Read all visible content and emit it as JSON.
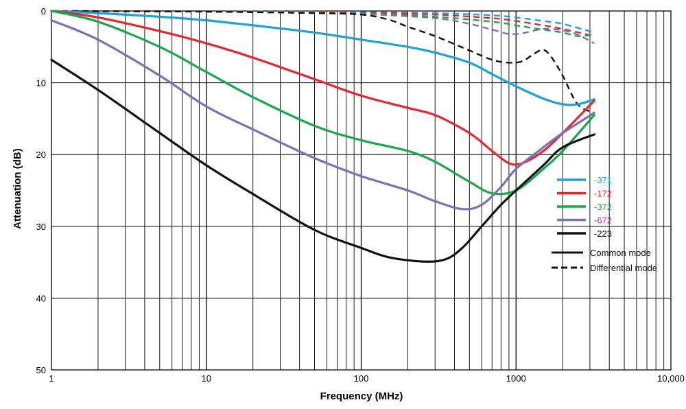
{
  "chart_data": {
    "type": "line",
    "title": "",
    "xlabel": "Frequency (MHz)",
    "ylabel": "Attenuation (dB)",
    "x_scale": "log",
    "xlim": [
      1,
      10000
    ],
    "ylim": [
      0,
      50
    ],
    "y_inverted": true,
    "grid": true,
    "x_ticks": [
      {
        "value": 1,
        "label": "1"
      },
      {
        "value": 10,
        "label": "10"
      },
      {
        "value": 100,
        "label": "100"
      },
      {
        "value": 1000,
        "label": "1000"
      },
      {
        "value": 10000,
        "label": "10,000"
      }
    ],
    "y_ticks": [
      {
        "value": 0,
        "label": "0"
      },
      {
        "value": 10,
        "label": "10"
      },
      {
        "value": 20,
        "label": "20"
      },
      {
        "value": 30,
        "label": "30"
      },
      {
        "value": 40,
        "label": "40"
      },
      {
        "value": 50,
        "label": "50"
      }
    ],
    "legend_position": "right",
    "series": [
      {
        "name": "-371",
        "mode": "common",
        "color": "#1ba1dc",
        "label_color": "#1ba1dc",
        "points": [
          [
            1,
            0
          ],
          [
            2,
            0.3
          ],
          [
            5,
            0.8
          ],
          [
            10,
            1.3
          ],
          [
            20,
            2
          ],
          [
            50,
            3
          ],
          [
            100,
            4
          ],
          [
            200,
            5
          ],
          [
            300,
            5.8
          ],
          [
            500,
            7.2
          ],
          [
            700,
            8.8
          ],
          [
            1000,
            10.5
          ],
          [
            1500,
            12.2
          ],
          [
            2000,
            13
          ],
          [
            2500,
            13
          ],
          [
            3200,
            12.3
          ]
        ]
      },
      {
        "name": "-172",
        "mode": "common",
        "color": "#e6262b",
        "label_color": "#e6262b",
        "points": [
          [
            1,
            0
          ],
          [
            2,
            0.9
          ],
          [
            5,
            2.8
          ],
          [
            10,
            4.5
          ],
          [
            20,
            6.5
          ],
          [
            50,
            9.5
          ],
          [
            100,
            11.8
          ],
          [
            200,
            13.5
          ],
          [
            300,
            14.5
          ],
          [
            500,
            17
          ],
          [
            700,
            19.5
          ],
          [
            900,
            21.2
          ],
          [
            1100,
            21.2
          ],
          [
            1500,
            19.5
          ],
          [
            2000,
            17
          ],
          [
            3200,
            12.5
          ]
        ]
      },
      {
        "name": "-372",
        "mode": "common",
        "color": "#17a84a",
        "label_color": "#17a84a",
        "points": [
          [
            1,
            0
          ],
          [
            2,
            1.5
          ],
          [
            5,
            5
          ],
          [
            10,
            8.5
          ],
          [
            20,
            12
          ],
          [
            50,
            16
          ],
          [
            100,
            18
          ],
          [
            200,
            19.5
          ],
          [
            300,
            21
          ],
          [
            500,
            23.8
          ],
          [
            700,
            25.4
          ],
          [
            1000,
            25
          ],
          [
            1500,
            22
          ],
          [
            2000,
            19.5
          ],
          [
            3200,
            14.5
          ]
        ]
      },
      {
        "name": "-672",
        "mode": "common",
        "color": "#7b6fb5",
        "label_color": "#a4338f",
        "points": [
          [
            1,
            1.3
          ],
          [
            2,
            4
          ],
          [
            5,
            9
          ],
          [
            10,
            13.3
          ],
          [
            20,
            16.5
          ],
          [
            50,
            20.5
          ],
          [
            100,
            23
          ],
          [
            200,
            25
          ],
          [
            300,
            26.5
          ],
          [
            450,
            27.6
          ],
          [
            600,
            27
          ],
          [
            800,
            24.5
          ],
          [
            1000,
            22
          ],
          [
            1500,
            19
          ],
          [
            2000,
            17
          ],
          [
            3200,
            14.2
          ]
        ]
      },
      {
        "name": "-223",
        "mode": "common",
        "color": "#111111",
        "label_color": "#111111",
        "points": [
          [
            1,
            6.8
          ],
          [
            2,
            11
          ],
          [
            5,
            17
          ],
          [
            10,
            21.5
          ],
          [
            20,
            25.5
          ],
          [
            50,
            30.5
          ],
          [
            100,
            33
          ],
          [
            150,
            34.3
          ],
          [
            250,
            34.9
          ],
          [
            350,
            34.6
          ],
          [
            450,
            33
          ],
          [
            600,
            30
          ],
          [
            800,
            27
          ],
          [
            1000,
            25
          ],
          [
            1500,
            21.5
          ],
          [
            2000,
            19
          ],
          [
            3200,
            17.2
          ]
        ]
      },
      {
        "name": "-371 differential",
        "mode": "differential",
        "color": "#1ba1dc",
        "points": [
          [
            1,
            0
          ],
          [
            10,
            0.05
          ],
          [
            50,
            0.1
          ],
          [
            100,
            0.15
          ],
          [
            300,
            0.3
          ],
          [
            700,
            0.6
          ],
          [
            1000,
            0.9
          ],
          [
            1500,
            1.4
          ],
          [
            2000,
            1.8
          ],
          [
            3200,
            3
          ]
        ]
      },
      {
        "name": "-172 differential",
        "mode": "differential",
        "color": "#e6262b",
        "points": [
          [
            1,
            0
          ],
          [
            10,
            0.05
          ],
          [
            50,
            0.1
          ],
          [
            100,
            0.2
          ],
          [
            300,
            0.5
          ],
          [
            700,
            1
          ],
          [
            1000,
            1.4
          ],
          [
            1500,
            2
          ],
          [
            2000,
            2.5
          ],
          [
            3200,
            3.5
          ]
        ]
      },
      {
        "name": "-372 differential",
        "mode": "differential",
        "color": "#17a84a",
        "points": [
          [
            1,
            0
          ],
          [
            10,
            0.05
          ],
          [
            50,
            0.15
          ],
          [
            100,
            0.3
          ],
          [
            300,
            0.8
          ],
          [
            700,
            1.5
          ],
          [
            1000,
            2
          ],
          [
            1500,
            2.6
          ],
          [
            2000,
            3
          ],
          [
            2500,
            3.5
          ],
          [
            3200,
            3.3
          ]
        ]
      },
      {
        "name": "-672 differential",
        "mode": "differential",
        "color": "#7b6fb5",
        "points": [
          [
            1,
            0
          ],
          [
            10,
            0.1
          ],
          [
            50,
            0.2
          ],
          [
            100,
            0.4
          ],
          [
            300,
            1
          ],
          [
            500,
            1.8
          ],
          [
            700,
            2.6
          ],
          [
            900,
            3.2
          ],
          [
            1100,
            3.1
          ],
          [
            1500,
            2.5
          ],
          [
            2000,
            2.7
          ],
          [
            2500,
            3.3
          ],
          [
            3200,
            4.5
          ]
        ]
      },
      {
        "name": "-223 differential",
        "mode": "differential",
        "color": "#111111",
        "points": [
          [
            1,
            0
          ],
          [
            10,
            0.1
          ],
          [
            50,
            0.3
          ],
          [
            100,
            0.5
          ],
          [
            150,
            1.2
          ],
          [
            200,
            2.2
          ],
          [
            300,
            3.5
          ],
          [
            500,
            5.5
          ],
          [
            700,
            6.8
          ],
          [
            900,
            7.2
          ],
          [
            1100,
            7
          ],
          [
            1300,
            6
          ],
          [
            1500,
            5.4
          ],
          [
            1700,
            6.5
          ],
          [
            2000,
            9
          ],
          [
            2500,
            13
          ],
          [
            3200,
            14.2
          ]
        ]
      }
    ],
    "legend": {
      "entries": [
        "-371",
        "-172",
        "-372",
        "-672",
        "-223"
      ],
      "modes": [
        {
          "label": "Common mode",
          "style": "solid"
        },
        {
          "label": "Differential mode",
          "style": "dashed"
        }
      ]
    }
  }
}
